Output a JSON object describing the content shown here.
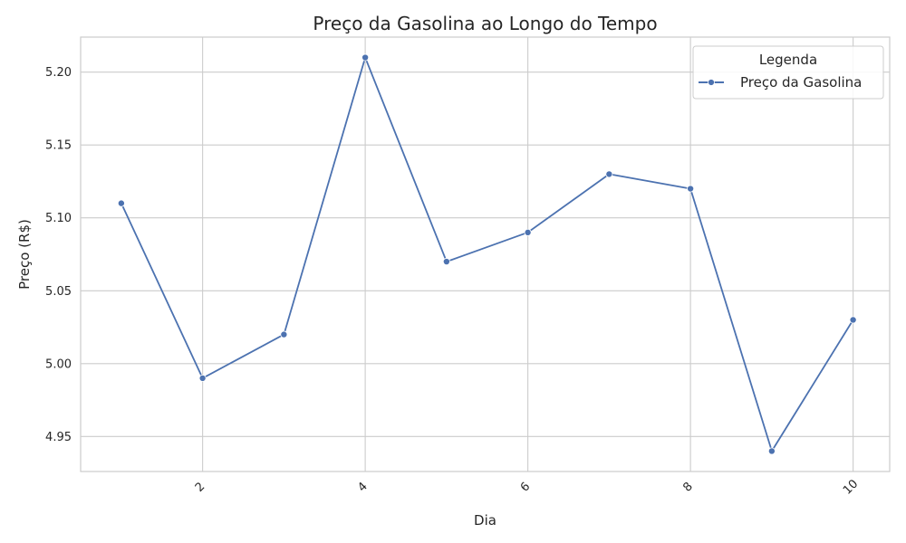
{
  "chart_data": {
    "type": "line",
    "title": "Preço da Gasolina ao Longo do Tempo",
    "xlabel": "Dia",
    "ylabel": "Preço (R$)",
    "x": [
      1,
      2,
      3,
      4,
      5,
      6,
      7,
      8,
      9,
      10
    ],
    "series": [
      {
        "name": "Preço da Gasolina",
        "values": [
          5.11,
          4.99,
          5.02,
          5.21,
          5.07,
          5.09,
          5.13,
          5.12,
          4.94,
          5.03
        ],
        "color": "#4c72b0"
      }
    ],
    "xlim": [
      0.5,
      10.45
    ],
    "ylim": [
      4.926,
      5.224
    ],
    "x_ticks": [
      2,
      4,
      6,
      8,
      10
    ],
    "x_tick_labels": [
      "2",
      "4",
      "6",
      "8",
      "10"
    ],
    "x_tick_rotation": 45,
    "y_ticks": [
      4.95,
      5.0,
      5.05,
      5.1,
      5.15,
      5.2
    ],
    "y_tick_labels": [
      "4.95",
      "5.00",
      "5.05",
      "5.10",
      "5.15",
      "5.20"
    ],
    "grid": true,
    "legend": {
      "title": "Legenda",
      "placement": "top-right"
    }
  }
}
